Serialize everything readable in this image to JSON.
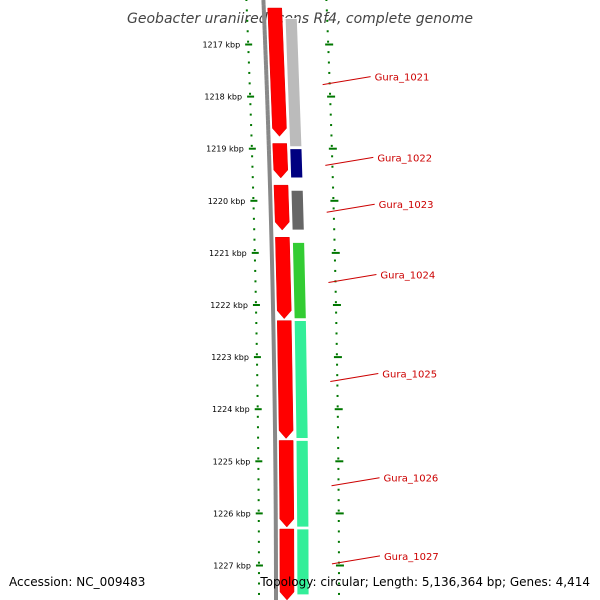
{
  "title": "Geobacter uraniireducens Rf4, complete genome",
  "accession_text": "Accession: NC_009483",
  "topology_text": "Topology: circular; Length: 5,136,364 bp; Genes: 4,414",
  "colors": {
    "label_red": "#cc0000",
    "tick_green": "#007700",
    "forward_gene": "#ff0000",
    "backbone": "#888888"
  },
  "kbp_ticks": [
    {
      "kbp": 1217,
      "label": "1217 kbp"
    },
    {
      "kbp": 1218,
      "label": "1218 kbp"
    },
    {
      "kbp": 1219,
      "label": "1219 kbp"
    },
    {
      "kbp": 1220,
      "label": "1220 kbp"
    },
    {
      "kbp": 1221,
      "label": "1221 kbp"
    },
    {
      "kbp": 1222,
      "label": "1222 kbp"
    },
    {
      "kbp": 1223,
      "label": "1223 kbp"
    },
    {
      "kbp": 1224,
      "label": "1224 kbp"
    },
    {
      "kbp": 1225,
      "label": "1225 kbp"
    },
    {
      "kbp": 1226,
      "label": "1226 kbp"
    },
    {
      "kbp": 1227,
      "label": "1227 kbp"
    }
  ],
  "genes": [
    {
      "name": "Gura_1021",
      "start_kbp": 1216.5,
      "end_kbp": 1219.0,
      "color": "#bbbbbb"
    },
    {
      "name": "Gura_1022",
      "start_kbp": 1219.0,
      "end_kbp": 1219.6,
      "color": "#000080"
    },
    {
      "name": "Gura_1023",
      "start_kbp": 1219.8,
      "end_kbp": 1220.6,
      "color": "#666666"
    },
    {
      "name": "Gura_1024",
      "start_kbp": 1220.8,
      "end_kbp": 1222.3,
      "color": "#33cc33"
    },
    {
      "name": "Gura_1025",
      "start_kbp": 1222.3,
      "end_kbp": 1224.6,
      "color": "#33ee99"
    },
    {
      "name": "Gura_1026",
      "start_kbp": 1224.6,
      "end_kbp": 1226.3,
      "color": "#33ee99"
    },
    {
      "name": "Gura_1027",
      "start_kbp": 1226.3,
      "end_kbp": 1227.6,
      "color": "#33ee99"
    }
  ]
}
